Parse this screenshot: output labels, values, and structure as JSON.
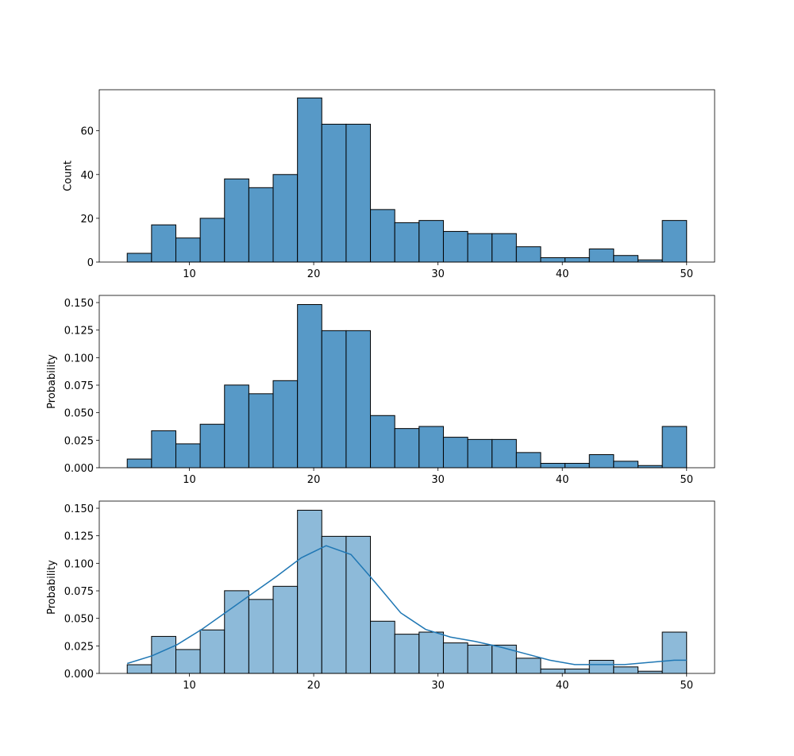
{
  "chart_data": [
    {
      "type": "histogram",
      "ylabel": "Count",
      "color": "#5799c7",
      "edgecolor": "#000000",
      "bins": [
        5,
        6.957,
        8.913,
        10.87,
        12.826,
        14.783,
        16.739,
        18.696,
        20.652,
        22.609,
        24.565,
        26.522,
        28.478,
        30.435,
        32.391,
        34.348,
        36.304,
        38.261,
        40.217,
        42.174,
        44.13,
        46.087,
        48.043,
        50
      ],
      "values": [
        4,
        17,
        11,
        20,
        38,
        34,
        40,
        75,
        63,
        63,
        24,
        18,
        19,
        14,
        13,
        13,
        7,
        2,
        2,
        6,
        3,
        1,
        19
      ],
      "xlim": [
        2.75,
        52.25
      ],
      "ylim": [
        0,
        78.75
      ],
      "xticks": [
        10,
        20,
        30,
        40,
        50
      ],
      "yticks": [
        0,
        20,
        40,
        60
      ]
    },
    {
      "type": "histogram",
      "ylabel": "Probability",
      "color": "#5799c7",
      "edgecolor": "#000000",
      "bins": [
        5,
        6.957,
        8.913,
        10.87,
        12.826,
        14.783,
        16.739,
        18.696,
        20.652,
        22.609,
        24.565,
        26.522,
        28.478,
        30.435,
        32.391,
        34.348,
        36.304,
        38.261,
        40.217,
        42.174,
        44.13,
        46.087,
        48.043,
        50
      ],
      "values": [
        0.0079,
        0.0336,
        0.0217,
        0.0395,
        0.0751,
        0.0672,
        0.0791,
        0.1482,
        0.1245,
        0.1245,
        0.0474,
        0.0356,
        0.0375,
        0.0277,
        0.0257,
        0.0257,
        0.0138,
        0.004,
        0.004,
        0.0119,
        0.0059,
        0.002,
        0.0375
      ],
      "xlim": [
        2.75,
        52.25
      ],
      "ylim": [
        0,
        0.1565
      ],
      "xticks": [
        10,
        20,
        30,
        40,
        50
      ],
      "yticks": [
        {
          "value": 0,
          "label": "0.000"
        },
        {
          "value": 0.025,
          "label": "0.025"
        },
        {
          "value": 0.05,
          "label": "0.050"
        },
        {
          "value": 0.075,
          "label": "0.075"
        },
        {
          "value": 0.1,
          "label": "0.100"
        },
        {
          "value": 0.125,
          "label": "0.125"
        },
        {
          "value": 0.15,
          "label": "0.150"
        }
      ]
    },
    {
      "type": "histogram",
      "ylabel": "Probability",
      "color": "#8dbad9",
      "edgecolor": "#000000",
      "bins": [
        5,
        6.957,
        8.913,
        10.87,
        12.826,
        14.783,
        16.739,
        18.696,
        20.652,
        22.609,
        24.565,
        26.522,
        28.478,
        30.435,
        32.391,
        34.348,
        36.304,
        38.261,
        40.217,
        42.174,
        44.13,
        46.087,
        48.043,
        50
      ],
      "values": [
        0.0079,
        0.0336,
        0.0217,
        0.0395,
        0.0751,
        0.0672,
        0.0791,
        0.1482,
        0.1245,
        0.1245,
        0.0474,
        0.0356,
        0.0375,
        0.0277,
        0.0257,
        0.0257,
        0.0138,
        0.004,
        0.004,
        0.0119,
        0.0059,
        0.002,
        0.0375
      ],
      "kde": {
        "color": "#1f77b4",
        "x": [
          5,
          7,
          9,
          11,
          13,
          15,
          17,
          19,
          21,
          23,
          25,
          27,
          29,
          31,
          33,
          35,
          37,
          39,
          41,
          43,
          45,
          47,
          49,
          50
        ],
        "values": [
          0.009,
          0.016,
          0.026,
          0.04,
          0.056,
          0.072,
          0.088,
          0.105,
          0.116,
          0.108,
          0.082,
          0.055,
          0.04,
          0.033,
          0.029,
          0.024,
          0.018,
          0.012,
          0.008,
          0.008,
          0.008,
          0.01,
          0.012,
          0.012
        ]
      },
      "xlim": [
        2.75,
        52.25
      ],
      "ylim": [
        0,
        0.1565
      ],
      "xticks": [
        10,
        20,
        30,
        40,
        50
      ],
      "yticks": [
        {
          "value": 0,
          "label": "0.000"
        },
        {
          "value": 0.025,
          "label": "0.025"
        },
        {
          "value": 0.05,
          "label": "0.050"
        },
        {
          "value": 0.075,
          "label": "0.075"
        },
        {
          "value": 0.1,
          "label": "0.100"
        },
        {
          "value": 0.125,
          "label": "0.125"
        },
        {
          "value": 0.15,
          "label": "0.150"
        }
      ]
    }
  ]
}
